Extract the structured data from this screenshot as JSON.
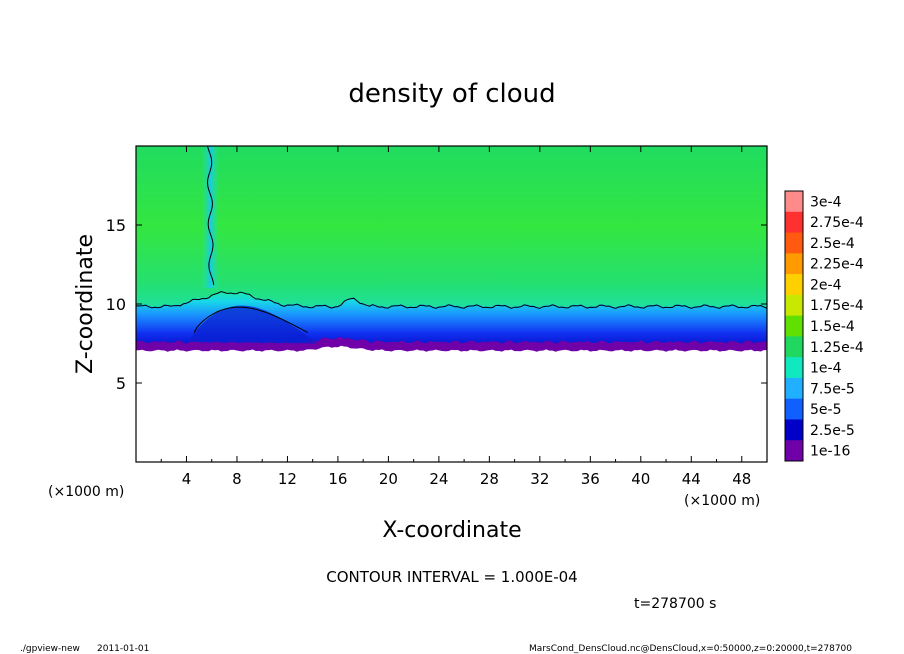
{
  "chart_data": {
    "type": "heatmap",
    "title": "density of cloud",
    "xlabel": "X-coordinate",
    "ylabel": "Z-coordinate",
    "x_unit": "(×1000 m)",
    "z_unit": "(×1000 m)",
    "xlim": [
      0,
      50
    ],
    "zlim": [
      0,
      20
    ],
    "x_ticks": [
      "4",
      "8",
      "12",
      "16",
      "20",
      "24",
      "28",
      "32",
      "36",
      "40",
      "44",
      "48"
    ],
    "z_ticks": [
      "5",
      "10",
      "15"
    ],
    "colorbar": {
      "labels": [
        "3e-4",
        "2.75e-4",
        "2.5e-4",
        "2.25e-4",
        "2e-4",
        "1.75e-4",
        "1.5e-4",
        "1.25e-4",
        "1e-4",
        "7.5e-5",
        "5e-5",
        "2.5e-5",
        "1e-16"
      ],
      "colors": [
        "#ff8a8a",
        "#ff3030",
        "#ff5a10",
        "#ff9a00",
        "#ffd000",
        "#c8e800",
        "#60e000",
        "#20d860",
        "#10e8c0",
        "#20b0ff",
        "#1060ff",
        "#0000c8",
        "#7000a8"
      ]
    },
    "field_description_points": {
      "cloud_base_z": 7.2,
      "cloud_top_z": 10.0,
      "upper_layer_range_z": [
        10,
        20
      ],
      "plume_x": 6.0
    },
    "contour_interval": "CONTOUR INTERVAL = 1.000E-04",
    "time_label": "t=278700 s"
  },
  "footer": {
    "program": "./gpview-new",
    "date": "2011-01-01",
    "source": "MarsCond_DensCloud.nc@DensCloud,x=0:50000,z=0:20000,t=278700"
  },
  "colors": {
    "upper_green": "#22e04a",
    "mid_cyan": "#18e0d0",
    "blue": "#1a6aff",
    "deep_blue": "#1010d8",
    "base_purple": "#7000a8"
  }
}
